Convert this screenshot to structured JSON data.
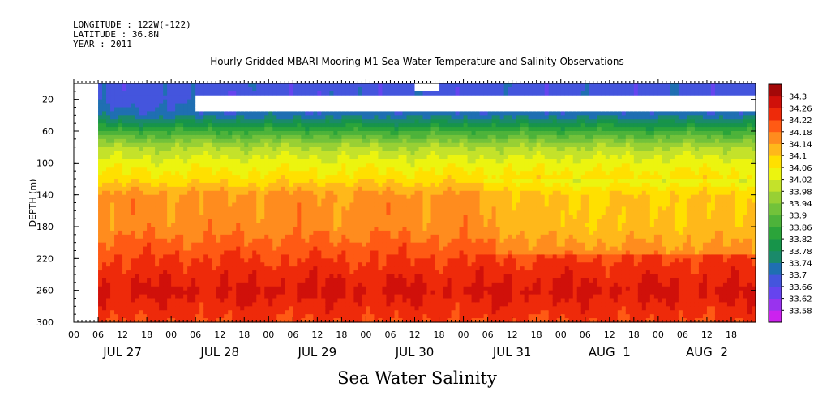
{
  "header": {
    "longitude": "LONGITUDE : 122W(-122)",
    "latitude": "LATITUDE : 36.8N",
    "year": "YEAR : 2011"
  },
  "chart_data": {
    "type": "heatmap",
    "title": "Hourly Gridded MBARI Mooring M1 Sea Water Temperature and Salinity Observations",
    "xlabel": "Sea Water Salinity",
    "ylabel": "DEPTH (m)",
    "x_range_hours": [
      0,
      168
    ],
    "ylim": [
      300,
      0
    ],
    "y_ticks": [
      20,
      60,
      100,
      140,
      180,
      220,
      260,
      300
    ],
    "x_hour_ticks": [
      "00",
      "06",
      "12",
      "18",
      "00",
      "06",
      "12",
      "18",
      "00",
      "06",
      "12",
      "18",
      "00",
      "06",
      "12",
      "18",
      "00",
      "06",
      "12",
      "18",
      "00",
      "06",
      "12",
      "18",
      "00",
      "06",
      "12",
      "18"
    ],
    "x_day_labels": [
      "JUL 27",
      "JUL 28",
      "JUL 29",
      "JUL 30",
      "JUL 31",
      "AUG  1",
      "AUG  2"
    ],
    "colorbar": {
      "levels": [
        "33.58",
        "33.62",
        "33.66",
        "33.7",
        "33.74",
        "33.78",
        "33.82",
        "33.86",
        "33.9",
        "33.94",
        "33.98",
        "34.02",
        "34.06",
        "34.1",
        "34.14",
        "34.18",
        "34.22",
        "34.26",
        "34.3"
      ],
      "colors": [
        "#cc22ee",
        "#9933ee",
        "#6644ee",
        "#4455dd",
        "#1f6fb2",
        "#1a8a6a",
        "#17944a",
        "#2ba43a",
        "#4db33a",
        "#72c23a",
        "#98d034",
        "#c4e22a",
        "#ecf40f",
        "#ffe000",
        "#ffb81a",
        "#ff8c1e",
        "#ff5a14",
        "#ee2a0a",
        "#d0100a",
        "#a30808"
      ]
    },
    "profile": [
      {
        "depth": 20,
        "salinity": 33.68
      },
      {
        "depth": 40,
        "salinity": 33.72
      },
      {
        "depth": 60,
        "salinity": 33.86
      },
      {
        "depth": 80,
        "salinity": 33.98
      },
      {
        "depth": 100,
        "salinity": 34.04
      },
      {
        "depth": 120,
        "salinity": 34.08
      },
      {
        "depth": 140,
        "salinity": 34.15
      },
      {
        "depth": 180,
        "salinity": 34.16
      },
      {
        "depth": 220,
        "salinity": 34.22
      },
      {
        "depth": 260,
        "salinity": 34.27
      },
      {
        "depth": 300,
        "salinity": 34.22
      }
    ],
    "missing_data": [
      {
        "hours": [
          0,
          6
        ],
        "depths": [
          0,
          300
        ]
      },
      {
        "hours": [
          30,
          168
        ],
        "depths": [
          15,
          35
        ]
      },
      {
        "hours": [
          84,
          90
        ],
        "depths": [
          0,
          12
        ]
      }
    ]
  }
}
